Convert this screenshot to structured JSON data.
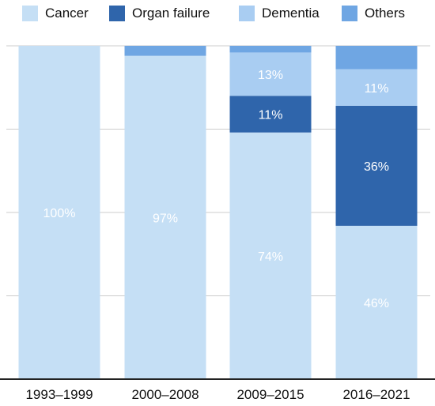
{
  "colors": {
    "cancer": "#c5dff5",
    "organ_failure": "#2f65ab",
    "dementia": "#a9cdf2",
    "others": "#6fa6e3",
    "grid": "#cccccc",
    "axis": "#222222",
    "label_light": "#ffffff",
    "label_dark": "#ffffff"
  },
  "legend": [
    {
      "key": "cancer",
      "label": "Cancer"
    },
    {
      "key": "organ_failure",
      "label": "Organ failure"
    },
    {
      "key": "dementia",
      "label": "Dementia"
    },
    {
      "key": "others",
      "label": "Others"
    }
  ],
  "chart_data": {
    "type": "bar",
    "stacked": true,
    "categories": [
      "1993–1999",
      "2000–2008",
      "2009–2015",
      "2016–2021"
    ],
    "series": [
      {
        "name": "Cancer",
        "key": "cancer",
        "values": [
          100,
          97,
          74,
          46
        ],
        "labels": [
          "100%",
          "97%",
          "74%",
          "46%"
        ]
      },
      {
        "name": "Organ failure",
        "key": "organ_failure",
        "values": [
          0,
          0,
          11,
          36
        ],
        "labels": [
          "",
          "",
          "11%",
          "36%"
        ]
      },
      {
        "name": "Dementia",
        "key": "dementia",
        "values": [
          0,
          0,
          13,
          11
        ],
        "labels": [
          "",
          "",
          "13%",
          "11%"
        ]
      },
      {
        "name": "Others",
        "key": "others",
        "values": [
          0,
          3,
          2,
          7
        ],
        "labels": [
          "",
          "",
          "",
          ""
        ]
      }
    ],
    "ylim": [
      0,
      100
    ],
    "grid": true,
    "legend_position": "top"
  }
}
